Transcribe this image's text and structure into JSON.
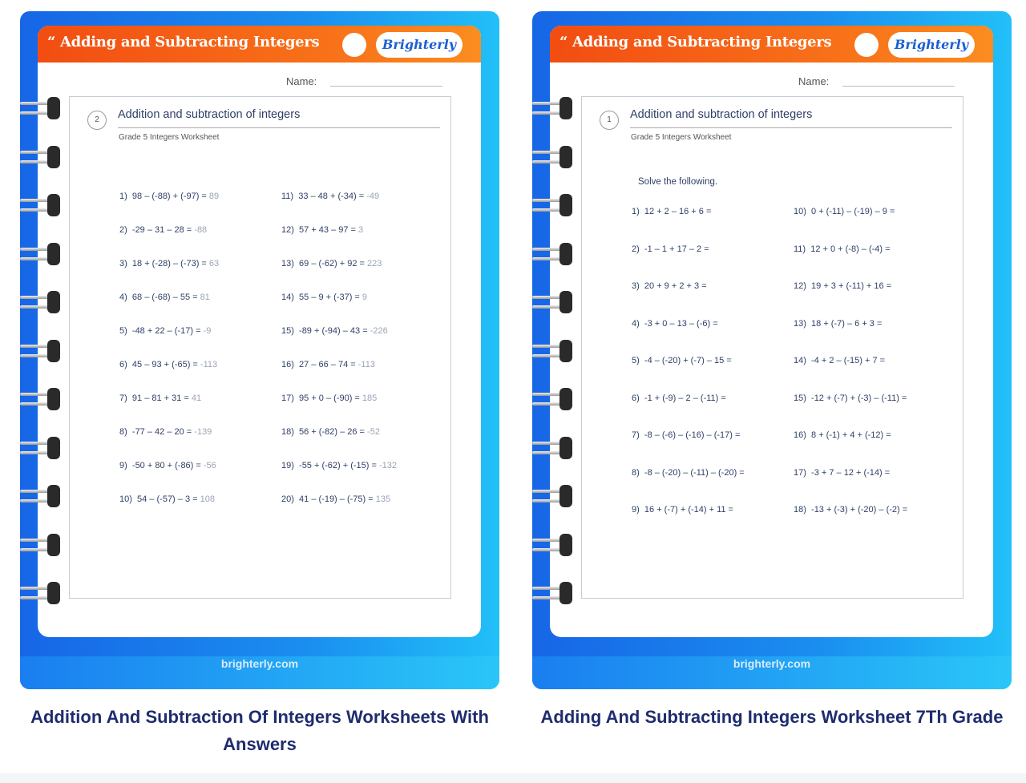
{
  "cards": [
    {
      "header_title": "“ Adding and Subtracting Integers",
      "logo": "Brighterly",
      "name_label": "Name:",
      "worksheet_number": "2",
      "worksheet_title": "Addition and subtraction of integers",
      "worksheet_subtitle": "Grade 5 Integers Worksheet",
      "instruction": "",
      "problems": [
        {
          "label": "1)",
          "expr": "98 – (-88) + (-97) =",
          "answer": "89"
        },
        {
          "label": "2)",
          "expr": "-29 – 31 – 28 =",
          "answer": "-88"
        },
        {
          "label": "3)",
          "expr": "18 + (-28) – (-73) =",
          "answer": "63"
        },
        {
          "label": "4)",
          "expr": "68 – (-68) – 55 =",
          "answer": "81"
        },
        {
          "label": "5)",
          "expr": "-48 + 22 – (-17) =",
          "answer": "-9"
        },
        {
          "label": "6)",
          "expr": "45 – 93 + (-65) =",
          "answer": "-113"
        },
        {
          "label": "7)",
          "expr": "91 – 81 + 31 =",
          "answer": "41"
        },
        {
          "label": "8)",
          "expr": "-77 – 42 – 20 =",
          "answer": "-139"
        },
        {
          "label": "9)",
          "expr": "-50 + 80 + (-86) =",
          "answer": "-56"
        },
        {
          "label": "10)",
          "expr": "54 – (-57) – 3 =",
          "answer": "108"
        },
        {
          "label": "11)",
          "expr": "33 – 48 + (-34) =",
          "answer": "-49"
        },
        {
          "label": "12)",
          "expr": "57 + 43 – 97 =",
          "answer": "3"
        },
        {
          "label": "13)",
          "expr": "69 – (-62) + 92 =",
          "answer": "223"
        },
        {
          "label": "14)",
          "expr": "55 – 9 + (-37) =",
          "answer": "9"
        },
        {
          "label": "15)",
          "expr": "-89 + (-94) – 43 =",
          "answer": "-226"
        },
        {
          "label": "16)",
          "expr": "27 – 66 – 74 =",
          "answer": "-113"
        },
        {
          "label": "17)",
          "expr": "95 + 0 – (-90) =",
          "answer": "185"
        },
        {
          "label": "18)",
          "expr": "56 + (-82) – 26 =",
          "answer": "-52"
        },
        {
          "label": "19)",
          "expr": "-55 + (-62) + (-15) =",
          "answer": "-132"
        },
        {
          "label": "20)",
          "expr": "41 – (-19) – (-75) =",
          "answer": "135"
        }
      ],
      "site": "brighterly.com",
      "caption": "Addition And Subtraction Of Integers Worksheets With Answers"
    },
    {
      "header_title": "“ Adding and Subtracting Integers",
      "logo": "Brighterly",
      "name_label": "Name:",
      "worksheet_number": "1",
      "worksheet_title": "Addition and subtraction of integers",
      "worksheet_subtitle": "Grade 5 Integers Worksheet",
      "instruction": "Solve the following.",
      "problems": [
        {
          "label": "1)",
          "expr": "12 + 2 – 16 + 6 =",
          "answer": ""
        },
        {
          "label": "2)",
          "expr": "-1 – 1 + 17 – 2 =",
          "answer": ""
        },
        {
          "label": "3)",
          "expr": "20 + 9 + 2 + 3 =",
          "answer": ""
        },
        {
          "label": "4)",
          "expr": "-3 + 0 – 13 – (-6) =",
          "answer": ""
        },
        {
          "label": "5)",
          "expr": "-4 – (-20) + (-7) – 15 =",
          "answer": ""
        },
        {
          "label": "6)",
          "expr": "-1 + (-9) – 2 – (-11) =",
          "answer": ""
        },
        {
          "label": "7)",
          "expr": "-8 – (-6) – (-16) – (-17) =",
          "answer": ""
        },
        {
          "label": "8)",
          "expr": "-8 – (-20) – (-11) – (-20) =",
          "answer": ""
        },
        {
          "label": "9)",
          "expr": "16 + (-7) + (-14) + 11 =",
          "answer": ""
        },
        {
          "label": "10)",
          "expr": "0 + (-11) – (-19) – 9 =",
          "answer": ""
        },
        {
          "label": "11)",
          "expr": "12 + 0 + (-8) – (-4) =",
          "answer": ""
        },
        {
          "label": "12)",
          "expr": "19 + 3 + (-11) + 16 =",
          "answer": ""
        },
        {
          "label": "13)",
          "expr": "18 + (-7) – 6 + 3 =",
          "answer": ""
        },
        {
          "label": "14)",
          "expr": "-4 + 2 – (-15) + 7 =",
          "answer": ""
        },
        {
          "label": "15)",
          "expr": "-12 + (-7) + (-3) – (-11) =",
          "answer": ""
        },
        {
          "label": "16)",
          "expr": "8 + (-1) + 4 + (-12) =",
          "answer": ""
        },
        {
          "label": "17)",
          "expr": "-3 + 7 – 12 + (-14) =",
          "answer": ""
        },
        {
          "label": "18)",
          "expr": "-13 + (-3) + (-20) – (-2) =",
          "answer": ""
        }
      ],
      "site": "brighterly.com",
      "caption": "Adding And Subtracting Integers Worksheet 7Th Grade"
    }
  ]
}
